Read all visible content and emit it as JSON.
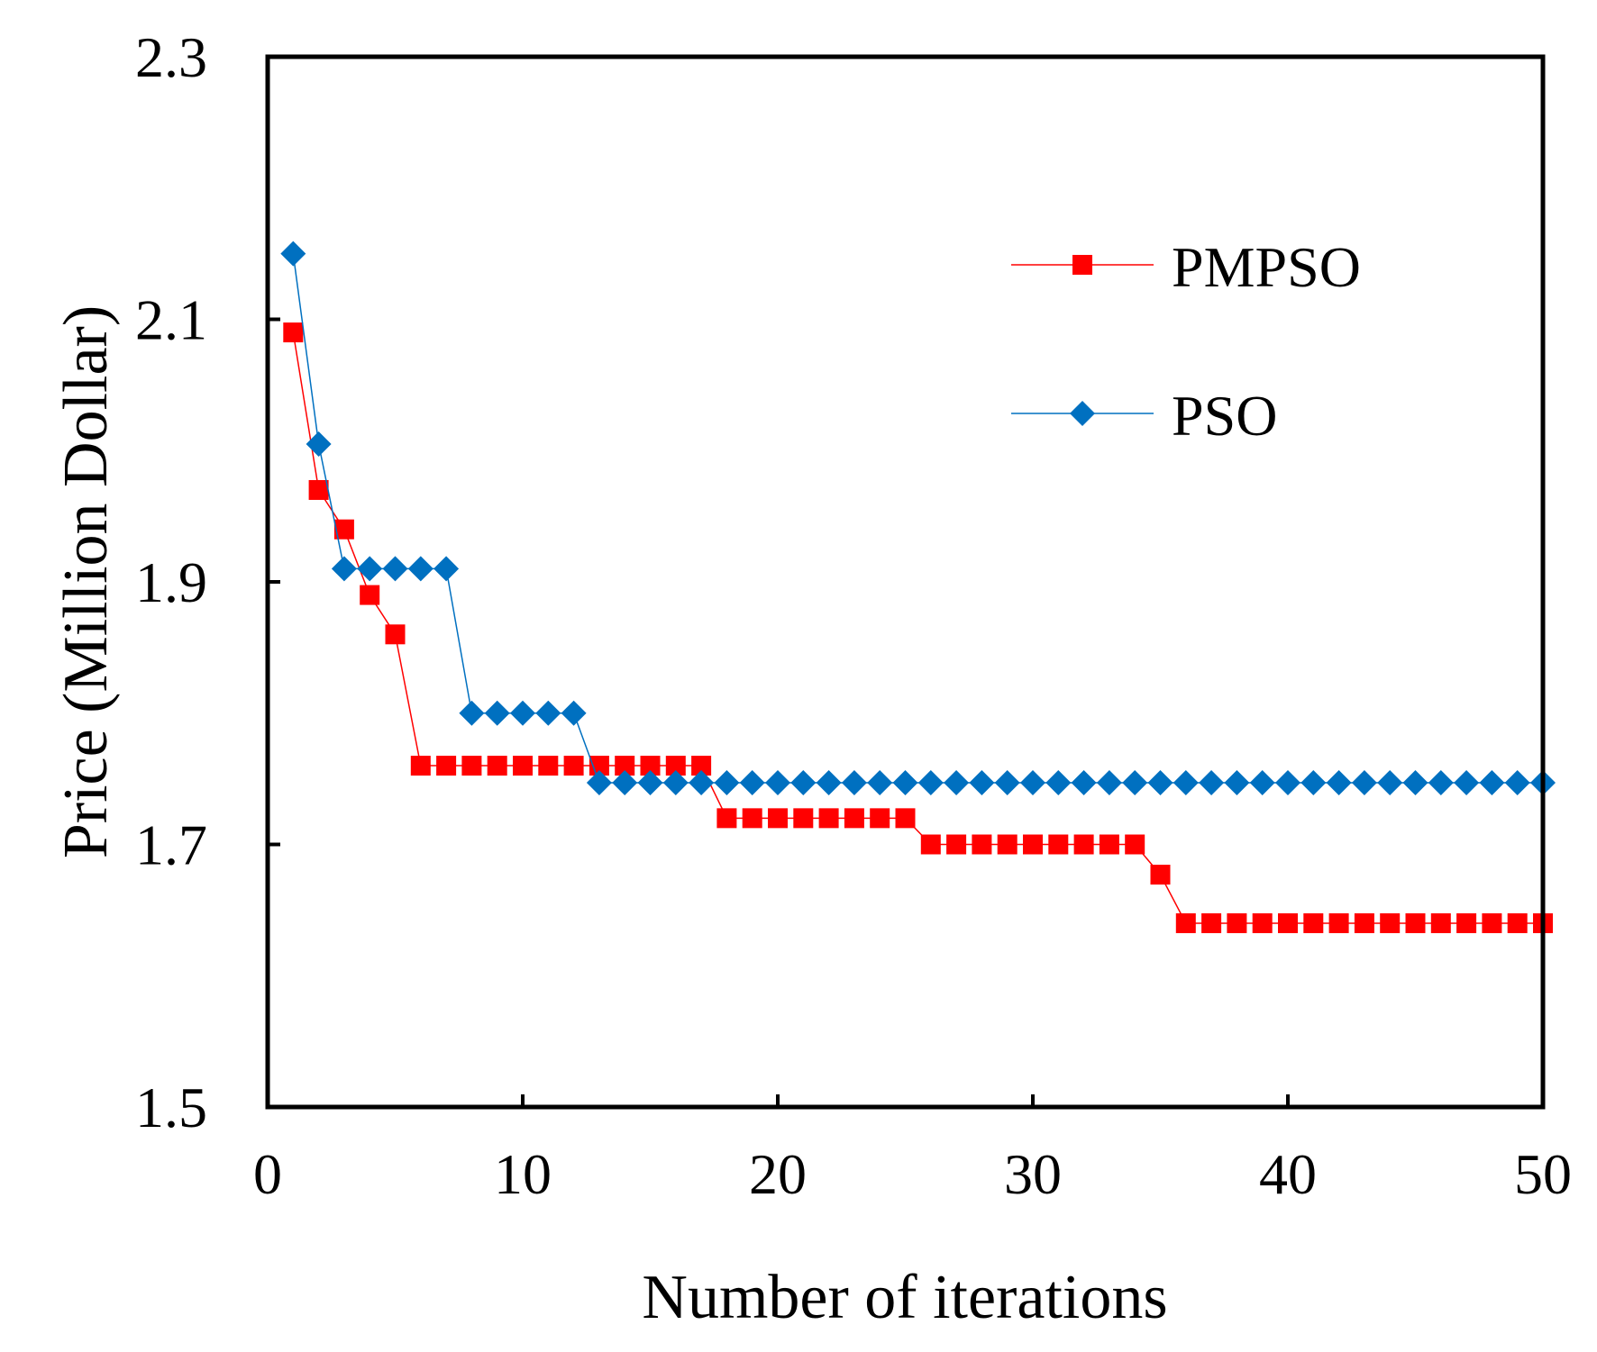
{
  "chart_data": {
    "type": "line",
    "title": "",
    "xlabel": "Number of iterations",
    "ylabel": "Price (Million Dollar)",
    "xlim": [
      0,
      50
    ],
    "ylim": [
      1.5,
      2.3
    ],
    "x_ticks": [
      "0",
      "10",
      "20",
      "30",
      "40",
      "50"
    ],
    "y_ticks": [
      "1.5",
      "1.7",
      "1.9",
      "2.1",
      "2.3"
    ],
    "x_tick_values": [
      0,
      10,
      20,
      30,
      40,
      50
    ],
    "y_tick_values": [
      1.5,
      1.7,
      1.9,
      2.1,
      2.3
    ],
    "grid": false,
    "legend_position": "top-right",
    "x": [
      1,
      2,
      3,
      4,
      5,
      6,
      7,
      8,
      9,
      10,
      11,
      12,
      13,
      14,
      15,
      16,
      17,
      18,
      19,
      20,
      21,
      22,
      23,
      24,
      25,
      26,
      27,
      28,
      29,
      30,
      31,
      32,
      33,
      34,
      35,
      36,
      37,
      38,
      39,
      40,
      41,
      42,
      43,
      44,
      45,
      46,
      47,
      48,
      49,
      50
    ],
    "series": [
      {
        "name": "PMPSO",
        "color": "#ff0000",
        "marker": "square",
        "values": [
          2.09,
          1.97,
          1.94,
          1.89,
          1.86,
          1.76,
          1.76,
          1.76,
          1.76,
          1.76,
          1.76,
          1.76,
          1.76,
          1.76,
          1.76,
          1.76,
          1.76,
          1.72,
          1.72,
          1.72,
          1.72,
          1.72,
          1.72,
          1.72,
          1.72,
          1.7,
          1.7,
          1.7,
          1.7,
          1.7,
          1.7,
          1.7,
          1.7,
          1.7,
          1.677,
          1.64,
          1.64,
          1.64,
          1.64,
          1.64,
          1.64,
          1.64,
          1.64,
          1.64,
          1.64,
          1.64,
          1.64,
          1.64,
          1.64,
          1.64
        ]
      },
      {
        "name": "PSO",
        "color": "#0070c0",
        "marker": "diamond",
        "values": [
          2.15,
          2.005,
          1.91,
          1.91,
          1.91,
          1.91,
          1.91,
          1.8,
          1.8,
          1.8,
          1.8,
          1.8,
          1.747,
          1.747,
          1.747,
          1.747,
          1.747,
          1.747,
          1.747,
          1.747,
          1.747,
          1.747,
          1.747,
          1.747,
          1.747,
          1.747,
          1.747,
          1.747,
          1.747,
          1.747,
          1.747,
          1.747,
          1.747,
          1.747,
          1.747,
          1.747,
          1.747,
          1.747,
          1.747,
          1.747,
          1.747,
          1.747,
          1.747,
          1.747,
          1.747,
          1.747,
          1.747,
          1.747,
          1.747,
          1.747
        ]
      }
    ]
  }
}
